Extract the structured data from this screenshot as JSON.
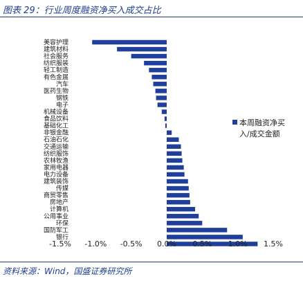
{
  "header": {
    "title": "图表 29：行业周度融资净买入成交占比"
  },
  "footer": {
    "source": "资料来源：Wind，国盛证券研究所"
  },
  "chart_data": {
    "type": "bar",
    "orientation": "horizontal",
    "categories": [
      "美容护理",
      "建筑材料",
      "社会服务",
      "纺织服装",
      "轻工制造",
      "有色金属",
      "汽车",
      "医药生物",
      "钢铁",
      "电子",
      "机械设备",
      "食品饮料",
      "基础化工",
      "非银金融",
      "石油石化",
      "交通运输",
      "纺织服饰",
      "农林牧渔",
      "家用电器",
      "电力设备",
      "建筑装饰",
      "传媒",
      "商贸零售",
      "房地产",
      "计算机",
      "公用事业",
      "环保",
      "国防军工",
      "银行"
    ],
    "values": [
      -1.05,
      -0.7,
      -0.5,
      -0.32,
      -0.25,
      -0.21,
      -0.19,
      -0.16,
      -0.15,
      -0.13,
      -0.07,
      -0.03,
      -0.02,
      0.07,
      0.17,
      0.2,
      0.21,
      0.22,
      0.24,
      0.25,
      0.3,
      0.31,
      0.32,
      0.33,
      0.4,
      0.45,
      0.5,
      0.85,
      1.07
    ],
    "values_extra_last": 1.28,
    "xlim": [
      -1.5,
      1.5
    ],
    "xticks": [
      "-1.5%",
      "-1.0%",
      "-0.5%",
      "0.0%",
      "0.5%",
      "1.0%",
      "1.5%"
    ],
    "xtick_values": [
      -1.5,
      -1.0,
      -0.5,
      0.0,
      0.5,
      1.0,
      1.5
    ],
    "legend": [
      "本周融资净买",
      "入/成交金额"
    ],
    "legend_position": "right",
    "grid": false,
    "colors": {
      "bar": "#1f3f9a",
      "title": "#1f3f8f"
    }
  }
}
